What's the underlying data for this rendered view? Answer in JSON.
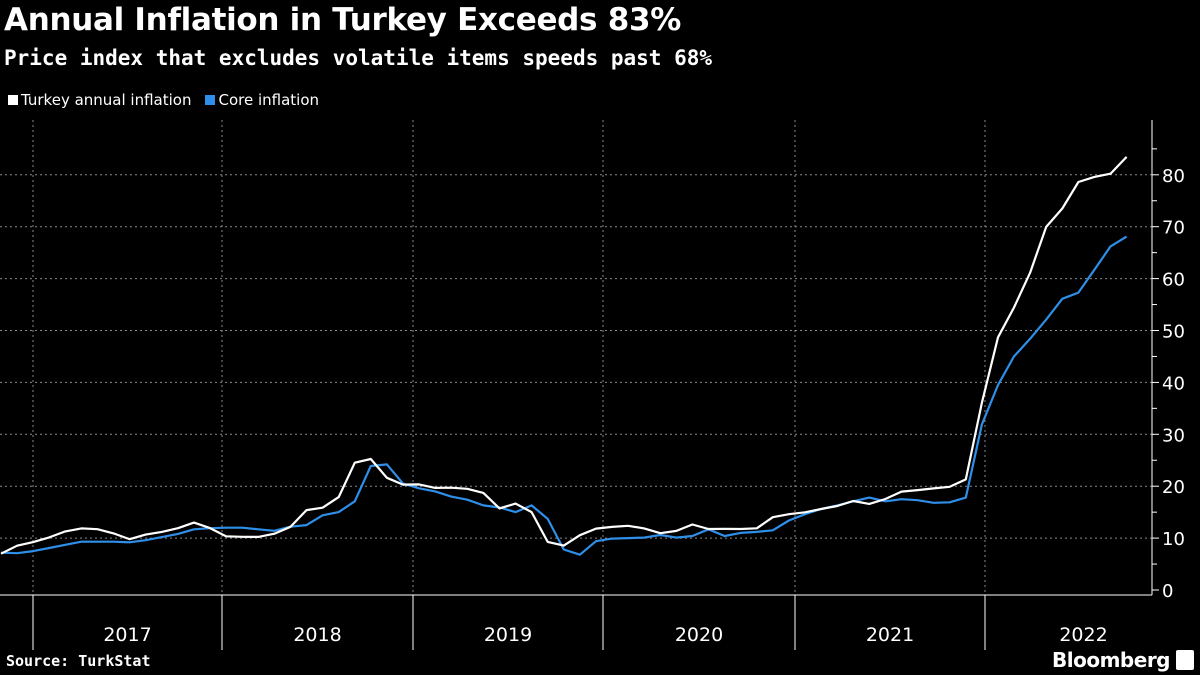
{
  "chart_data": {
    "type": "line",
    "title": "Annual Inflation in Turkey Exceeds 83%",
    "subtitle": "Price index that excludes volatile items speeds past 68%",
    "x_start": "2016-11",
    "frequency": "monthly",
    "x_tick_labels": [
      "2017",
      "2018",
      "2019",
      "2020",
      "2021",
      "2022"
    ],
    "y_tick_labels": [
      "0",
      "10",
      "20",
      "30",
      "40",
      "50",
      "60",
      "70",
      "80"
    ],
    "ylim": [
      0,
      90
    ],
    "ylabel": "",
    "xlabel": "",
    "grid": true,
    "legend_position": "top-left",
    "series": [
      {
        "name": "Turkey annual inflation",
        "color": "#ffffff",
        "values": [
          7.0,
          8.53,
          9.22,
          10.13,
          11.29,
          11.87,
          11.72,
          10.9,
          9.79,
          10.68,
          11.2,
          11.9,
          12.98,
          11.92,
          10.35,
          10.26,
          10.23,
          10.85,
          12.15,
          15.39,
          15.85,
          17.9,
          24.52,
          25.24,
          21.62,
          20.3,
          20.35,
          19.67,
          19.71,
          19.5,
          18.71,
          15.72,
          16.65,
          15.01,
          9.26,
          8.55,
          10.56,
          11.84,
          12.15,
          12.37,
          11.86,
          10.94,
          11.39,
          12.62,
          11.76,
          11.77,
          11.75,
          11.89,
          14.03,
          14.6,
          14.97,
          15.61,
          16.19,
          17.14,
          16.59,
          17.53,
          18.95,
          19.25,
          19.58,
          19.89,
          21.31,
          36.08,
          48.69,
          54.44,
          61.14,
          69.97,
          73.5,
          78.62,
          79.6,
          80.21,
          83.45
        ]
      },
      {
        "name": "Core inflation",
        "color": "#2f8fe8",
        "values": [
          7.2,
          7.1,
          7.5,
          8.1,
          8.7,
          9.3,
          9.3,
          9.3,
          9.2,
          9.6,
          10.2,
          10.8,
          11.7,
          11.9,
          12.0,
          12.0,
          11.7,
          11.4,
          12.2,
          12.5,
          14.4,
          15.0,
          17.1,
          23.9,
          24.2,
          20.5,
          19.6,
          19.0,
          18.0,
          17.4,
          16.3,
          15.9,
          15.0,
          16.3,
          13.7,
          7.8,
          6.8,
          9.4,
          9.9,
          10.0,
          10.1,
          10.6,
          10.1,
          10.4,
          11.7,
          10.4,
          11.0,
          11.2,
          11.5,
          13.4,
          14.6,
          15.6,
          16.3,
          17.1,
          17.8,
          17.1,
          17.5,
          17.3,
          16.8,
          16.9,
          17.8,
          31.9,
          39.5,
          45.0,
          48.4,
          52.1,
          56.1,
          57.3,
          61.7,
          66.2,
          68.1
        ]
      }
    ]
  },
  "footer": {
    "source": "Source: TurkStat",
    "brand": "Bloomberg"
  }
}
